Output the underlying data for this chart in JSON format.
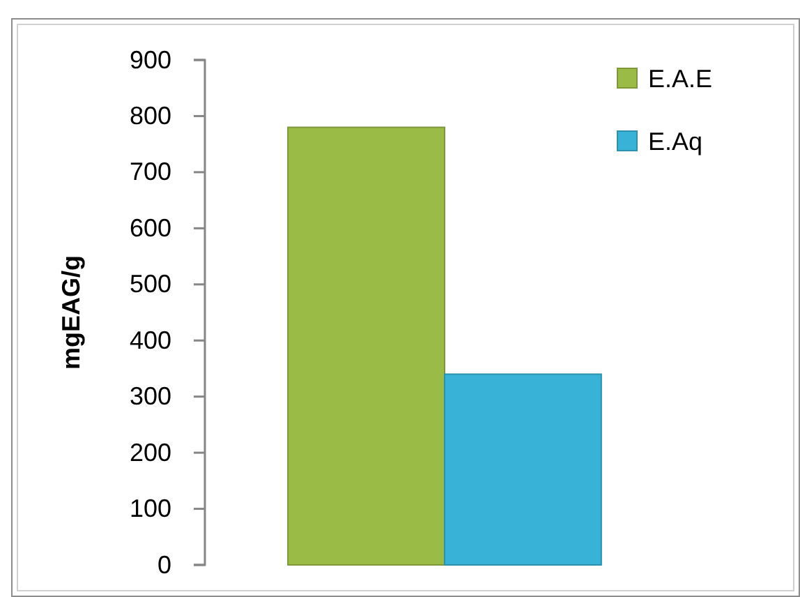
{
  "chart_data": {
    "type": "bar",
    "ylabel": "mgEAG/g",
    "categories": [
      null
    ],
    "series": [
      {
        "name": "E.A.E",
        "color": "#9bbb47",
        "values": [
          780
        ]
      },
      {
        "name": "E.Aq",
        "color": "#38b2d6",
        "values": [
          340
        ]
      }
    ],
    "ylim": [
      0,
      900
    ],
    "yticks": [
      0,
      100,
      200,
      300,
      400,
      500,
      600,
      700,
      800,
      900
    ],
    "legend": "top right"
  }
}
